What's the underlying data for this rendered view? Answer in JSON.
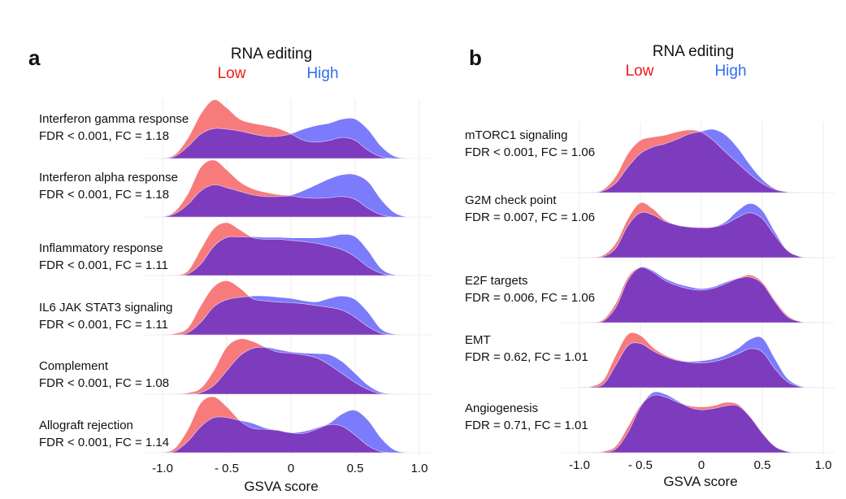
{
  "chart_data": [
    {
      "panel": "a",
      "type": "ridgeline density",
      "legend_title": "RNA editing",
      "legend_placement": "top",
      "series": [
        {
          "name": "Low",
          "color": "#f77b7b"
        },
        {
          "name": "High",
          "color": "#7b7bfb"
        }
      ],
      "overlap_color": "#7d3cbd",
      "xlabel": "GSVA score",
      "xticks": [
        "-1.0",
        "- 0.5",
        "0",
        "0.5",
        "1.0"
      ],
      "xtick_values": [
        -1.0,
        -0.5,
        0,
        0.5,
        1.0
      ],
      "xlim": [
        -1.0,
        1.0
      ],
      "grid": true,
      "x": [
        -1.0,
        -0.9,
        -0.8,
        -0.7,
        -0.6,
        -0.5,
        -0.4,
        -0.3,
        -0.2,
        -0.1,
        0,
        0.1,
        0.2,
        0.3,
        0.4,
        0.5,
        0.6,
        0.7,
        0.8,
        0.9
      ],
      "ridges": [
        {
          "name": "Interferon gamma response",
          "stat": "FDR < 0.001, FC = 1.18",
          "Low": [
            0,
            0.07,
            0.35,
            0.76,
            1.0,
            0.86,
            0.67,
            0.6,
            0.56,
            0.51,
            0.42,
            0.31,
            0.28,
            0.31,
            0.36,
            0.31,
            0.14,
            0.03,
            0,
            0
          ],
          "High": [
            0,
            0.04,
            0.21,
            0.42,
            0.51,
            0.5,
            0.47,
            0.42,
            0.38,
            0.38,
            0.42,
            0.5,
            0.56,
            0.6,
            0.67,
            0.67,
            0.49,
            0.21,
            0.04,
            0
          ]
        },
        {
          "name": "Interferon alpha response",
          "stat": "FDR < 0.001, FC = 1.18",
          "Low": [
            0,
            0.1,
            0.4,
            0.85,
            0.97,
            0.8,
            0.6,
            0.48,
            0.42,
            0.38,
            0.36,
            0.33,
            0.32,
            0.33,
            0.35,
            0.3,
            0.15,
            0.04,
            0,
            0
          ],
          "High": [
            0,
            0.06,
            0.22,
            0.45,
            0.55,
            0.5,
            0.44,
            0.38,
            0.35,
            0.35,
            0.37,
            0.45,
            0.55,
            0.65,
            0.72,
            0.72,
            0.6,
            0.3,
            0.08,
            0
          ]
        },
        {
          "name": "Inflammatory response",
          "stat": "FDR < 0.001, FC = 1.11",
          "Low": [
            0,
            0,
            0.08,
            0.45,
            0.8,
            0.9,
            0.78,
            0.65,
            0.62,
            0.62,
            0.6,
            0.58,
            0.55,
            0.5,
            0.44,
            0.32,
            0.15,
            0.04,
            0,
            0
          ],
          "High": [
            0,
            0,
            0.03,
            0.2,
            0.5,
            0.65,
            0.66,
            0.66,
            0.65,
            0.65,
            0.64,
            0.64,
            0.64,
            0.66,
            0.7,
            0.66,
            0.42,
            0.12,
            0.01,
            0
          ]
        },
        {
          "name": "IL6 JAK STAT3 signaling",
          "stat": "FDR < 0.001, FC = 1.11",
          "Low": [
            0,
            0.02,
            0.12,
            0.5,
            0.82,
            0.92,
            0.8,
            0.62,
            0.58,
            0.56,
            0.55,
            0.53,
            0.5,
            0.47,
            0.42,
            0.3,
            0.14,
            0.03,
            0,
            0
          ],
          "High": [
            0,
            0,
            0.04,
            0.22,
            0.48,
            0.6,
            0.64,
            0.66,
            0.66,
            0.64,
            0.62,
            0.58,
            0.56,
            0.62,
            0.66,
            0.6,
            0.38,
            0.1,
            0.01,
            0
          ]
        },
        {
          "name": "Complement",
          "stat": "FDR < 0.001, FC = 1.08",
          "Low": [
            0,
            0,
            0.02,
            0.1,
            0.4,
            0.8,
            0.94,
            0.9,
            0.8,
            0.72,
            0.7,
            0.67,
            0.62,
            0.5,
            0.35,
            0.2,
            0.08,
            0.01,
            0,
            0
          ],
          "High": [
            0,
            0,
            0,
            0.03,
            0.15,
            0.4,
            0.65,
            0.78,
            0.8,
            0.76,
            0.72,
            0.7,
            0.69,
            0.67,
            0.55,
            0.35,
            0.15,
            0.03,
            0,
            0
          ]
        },
        {
          "name": "Allograft rejection",
          "stat": "FDR < 0.001, FC = 1.14",
          "Low": [
            0,
            0.08,
            0.4,
            0.85,
            0.95,
            0.78,
            0.55,
            0.42,
            0.4,
            0.38,
            0.34,
            0.33,
            0.4,
            0.48,
            0.45,
            0.3,
            0.12,
            0.02,
            0,
            0
          ],
          "High": [
            0,
            0.03,
            0.2,
            0.45,
            0.6,
            0.6,
            0.55,
            0.5,
            0.42,
            0.38,
            0.34,
            0.36,
            0.42,
            0.5,
            0.66,
            0.72,
            0.55,
            0.25,
            0.05,
            0
          ]
        }
      ]
    },
    {
      "panel": "b",
      "type": "ridgeline density",
      "legend_title": "RNA editing",
      "legend_placement": "top",
      "series": [
        {
          "name": "Low",
          "color": "#f77b7b"
        },
        {
          "name": "High",
          "color": "#7b7bfb"
        }
      ],
      "overlap_color": "#7d3cbd",
      "xlabel": "GSVA score",
      "xticks": [
        "-1.0",
        "- 0.5",
        "0",
        "0.5",
        "1.0"
      ],
      "xtick_values": [
        -1.0,
        -0.5,
        0,
        0.5,
        1.0
      ],
      "xlim": [
        -1.0,
        1.0
      ],
      "grid": true,
      "x": [
        -1.0,
        -0.9,
        -0.8,
        -0.7,
        -0.6,
        -0.5,
        -0.4,
        -0.3,
        -0.2,
        -0.1,
        0,
        0.1,
        0.2,
        0.3,
        0.4,
        0.5,
        0.6,
        0.7,
        0.8,
        0.9,
        1.0
      ],
      "ridges": [
        {
          "name": "mTORC1 signaling",
          "stat": "FDR < 0.001, FC = 1.06",
          "Low": [
            0,
            0,
            0.05,
            0.25,
            0.6,
            0.8,
            0.85,
            0.88,
            0.93,
            0.96,
            0.93,
            0.8,
            0.62,
            0.45,
            0.28,
            0.14,
            0.05,
            0.01,
            0,
            0,
            0
          ],
          "High": [
            0,
            0,
            0.03,
            0.15,
            0.4,
            0.6,
            0.7,
            0.75,
            0.82,
            0.9,
            0.94,
            0.97,
            0.88,
            0.68,
            0.42,
            0.2,
            0.06,
            0.01,
            0,
            0,
            0
          ]
        },
        {
          "name": "G2M check point",
          "stat": "FDR = 0.007, FC = 1.06",
          "Low": [
            0,
            0,
            0.04,
            0.22,
            0.6,
            0.84,
            0.75,
            0.58,
            0.5,
            0.47,
            0.46,
            0.47,
            0.52,
            0.62,
            0.69,
            0.6,
            0.35,
            0.12,
            0.02,
            0,
            0
          ],
          "High": [
            0,
            0,
            0.02,
            0.15,
            0.5,
            0.69,
            0.66,
            0.56,
            0.5,
            0.47,
            0.46,
            0.47,
            0.55,
            0.72,
            0.83,
            0.72,
            0.4,
            0.12,
            0.02,
            0,
            0
          ]
        },
        {
          "name": "E2F targets",
          "stat": "FDR = 0.006, FC = 1.06",
          "Low": [
            0,
            0,
            0.05,
            0.3,
            0.7,
            0.85,
            0.78,
            0.65,
            0.57,
            0.52,
            0.5,
            0.53,
            0.6,
            0.68,
            0.73,
            0.62,
            0.35,
            0.12,
            0.02,
            0,
            0
          ],
          "High": [
            0,
            0,
            0.03,
            0.24,
            0.66,
            0.85,
            0.8,
            0.68,
            0.6,
            0.55,
            0.52,
            0.55,
            0.62,
            0.68,
            0.7,
            0.6,
            0.33,
            0.1,
            0.02,
            0,
            0
          ]
        },
        {
          "name": "EMT",
          "stat": "FDR = 0.62, FC = 1.01",
          "Low": [
            0,
            0.02,
            0.12,
            0.5,
            0.82,
            0.8,
            0.62,
            0.5,
            0.43,
            0.39,
            0.38,
            0.4,
            0.45,
            0.52,
            0.6,
            0.55,
            0.3,
            0.1,
            0.02,
            0,
            0
          ],
          "High": [
            0,
            0.01,
            0.06,
            0.35,
            0.65,
            0.68,
            0.57,
            0.48,
            0.42,
            0.4,
            0.41,
            0.44,
            0.5,
            0.6,
            0.74,
            0.76,
            0.45,
            0.15,
            0.03,
            0,
            0
          ]
        },
        {
          "name": "Angiogenesis",
          "stat": "FDR = 0.71, FC = 1.01",
          "Low": [
            0,
            0,
            0.02,
            0.1,
            0.4,
            0.72,
            0.88,
            0.86,
            0.78,
            0.72,
            0.7,
            0.72,
            0.77,
            0.74,
            0.55,
            0.3,
            0.1,
            0.02,
            0,
            0,
            0
          ],
          "High": [
            0,
            0,
            0.01,
            0.06,
            0.32,
            0.7,
            0.92,
            0.9,
            0.8,
            0.7,
            0.66,
            0.68,
            0.72,
            0.72,
            0.55,
            0.3,
            0.1,
            0.02,
            0,
            0,
            0
          ]
        }
      ]
    }
  ]
}
